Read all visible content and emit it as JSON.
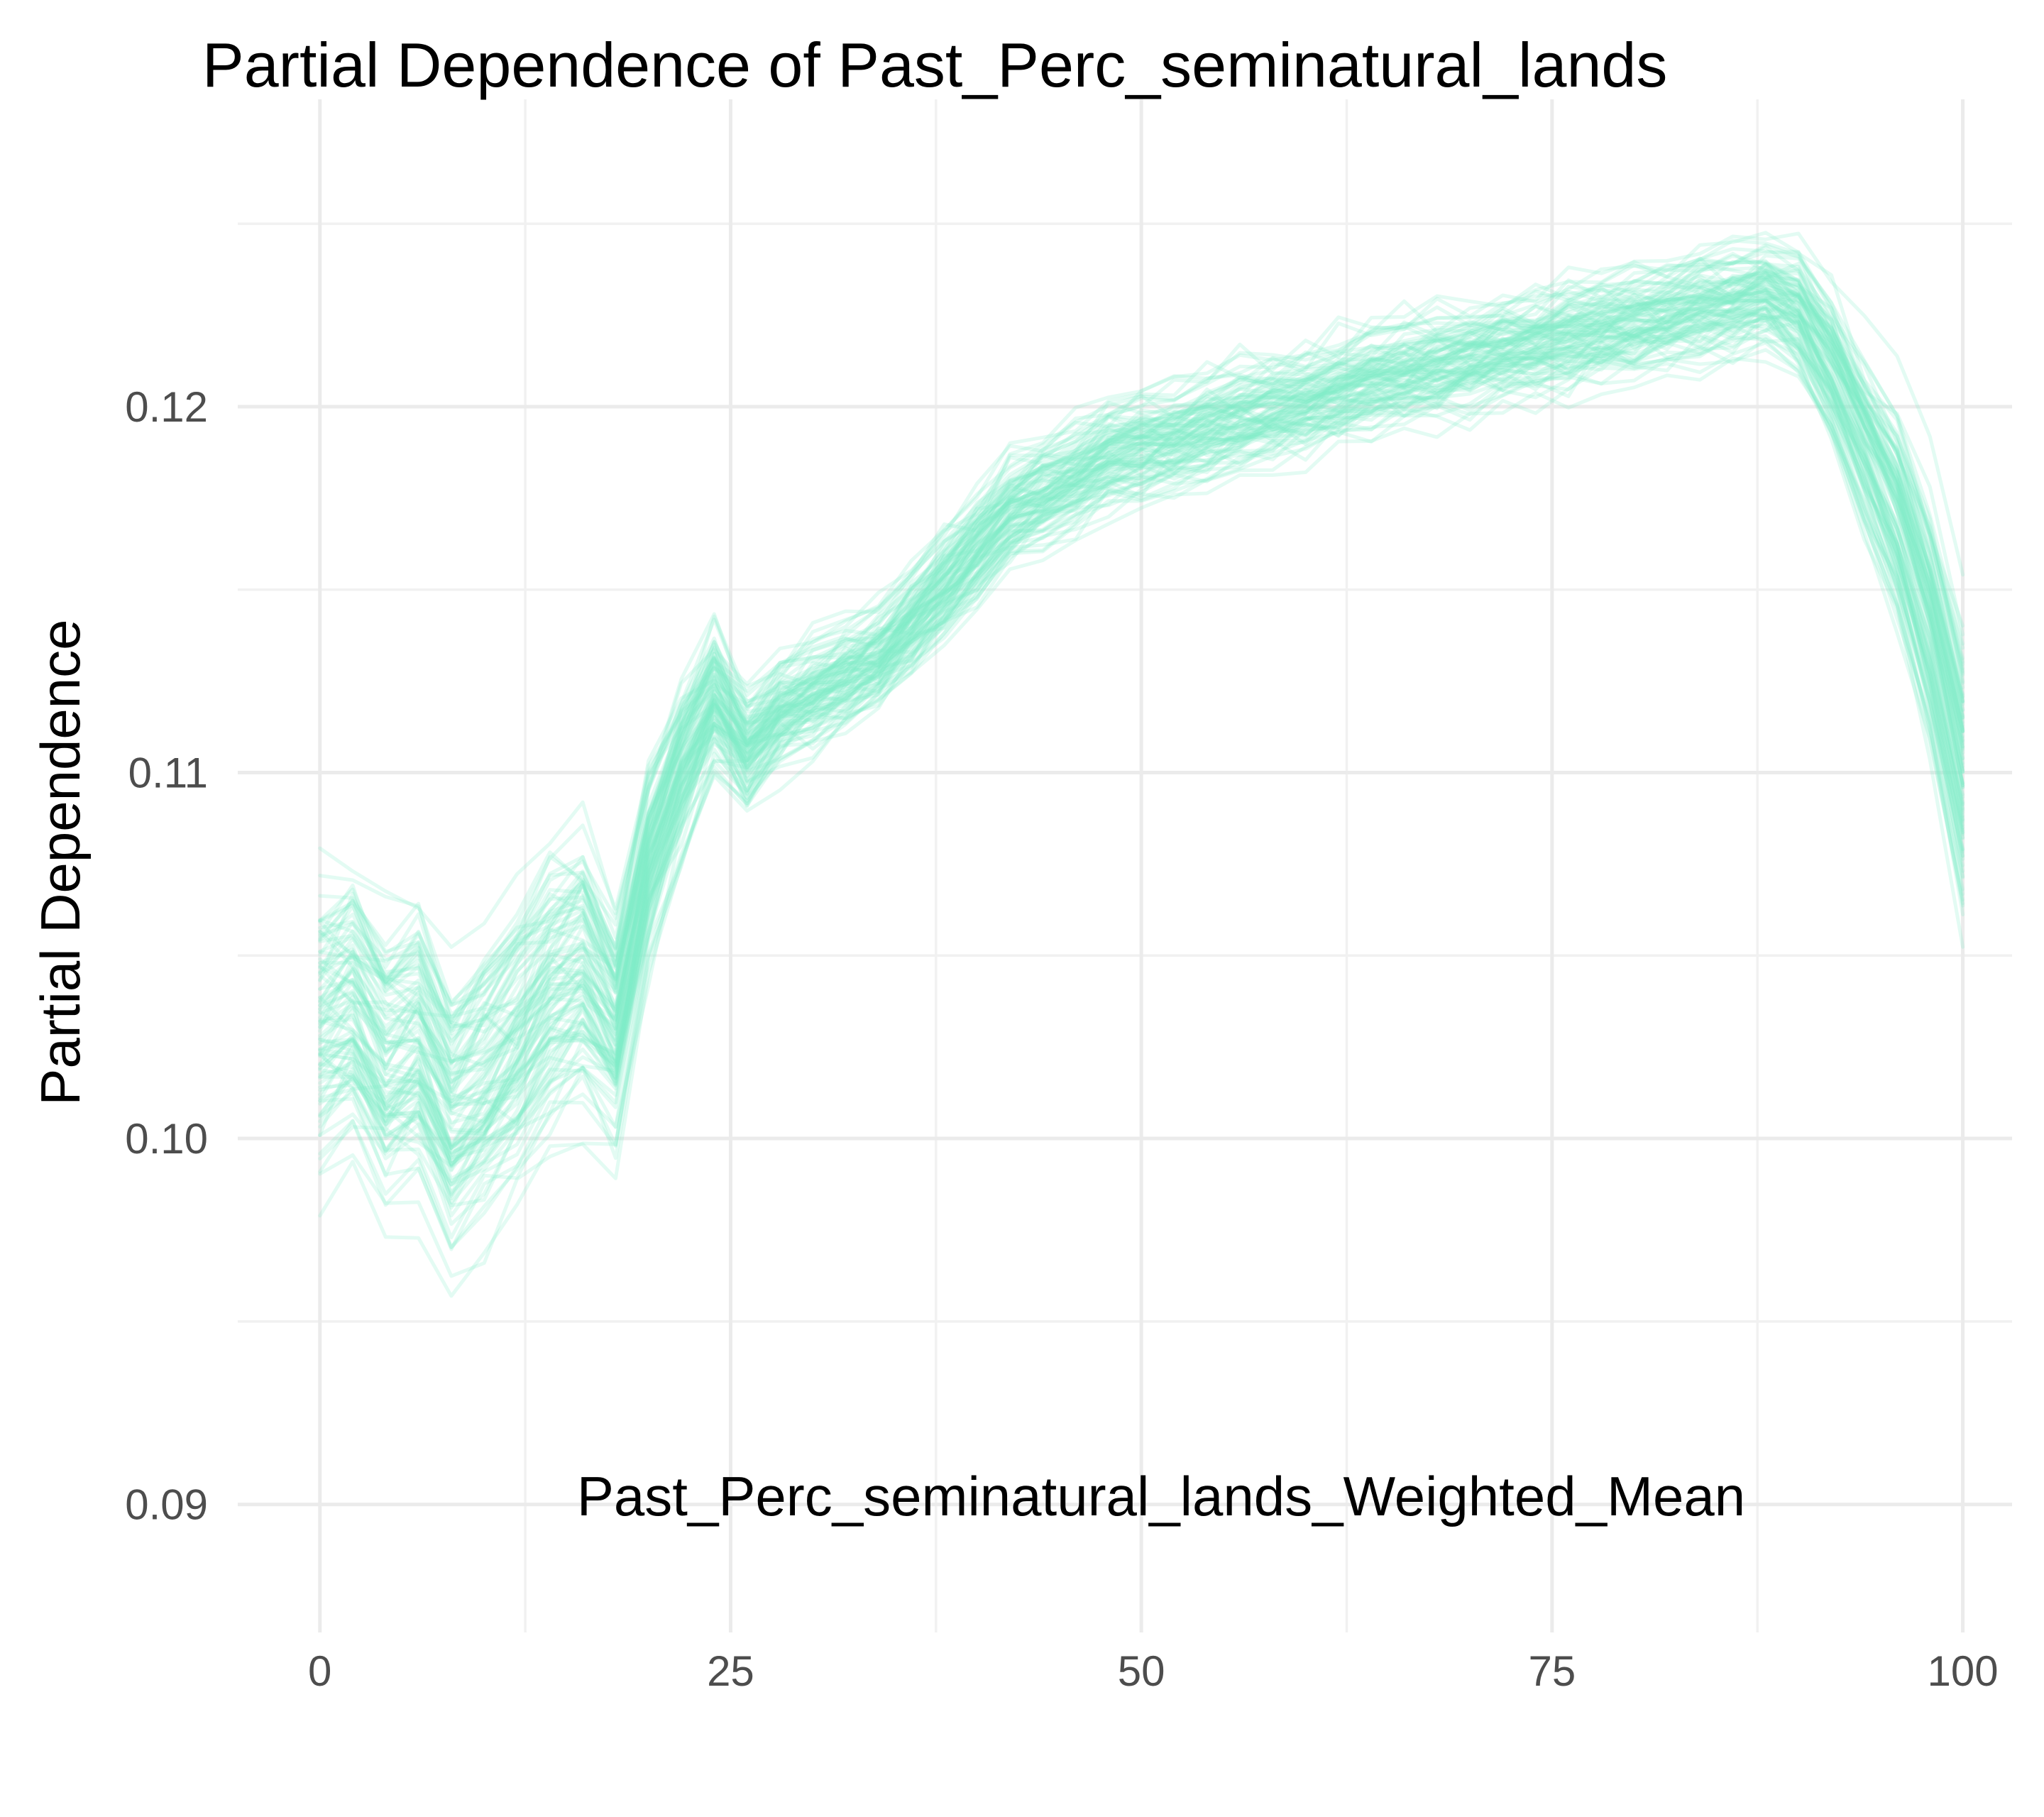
{
  "chart_data": {
    "type": "line",
    "title": "Partial Dependence of Past_Perc_seminatural_lands",
    "xlabel": "Past_Perc_seminatural_lands_Weighted_Mean",
    "ylabel": "Partial Dependence",
    "xlim": [
      -5,
      103
    ],
    "ylim": [
      0.0865,
      0.1284
    ],
    "x_ticks": [
      0,
      25,
      50,
      75,
      100
    ],
    "x_tick_labels": [
      "0",
      "25",
      "50",
      "75",
      "100"
    ],
    "y_ticks": [
      0.09,
      0.1,
      0.11,
      0.12
    ],
    "y_tick_labels": [
      "0.09",
      "0.10",
      "0.11",
      "0.12"
    ],
    "grid": true,
    "legend": "none",
    "line_color": "#7fecc9",
    "line_opacity": 0.22,
    "description": "Individual conditional expectation curves (about 100 series), each a variation of the mean curve below.",
    "mean_curve": {
      "x": [
        0,
        2,
        4,
        6,
        8,
        10,
        12,
        14,
        16,
        18,
        20,
        22,
        24,
        26,
        28,
        30,
        32,
        34,
        36,
        38,
        40,
        42,
        44,
        46,
        48,
        50,
        52,
        54,
        56,
        58,
        60,
        62,
        64,
        66,
        68,
        70,
        72,
        74,
        76,
        78,
        80,
        82,
        84,
        86,
        88,
        90,
        92,
        94,
        96,
        98,
        100
      ],
      "y": [
        0.103,
        0.1035,
        0.102,
        0.1025,
        0.1005,
        0.1015,
        0.1025,
        0.104,
        0.1045,
        0.103,
        0.1075,
        0.11,
        0.112,
        0.1105,
        0.1115,
        0.112,
        0.1125,
        0.113,
        0.114,
        0.115,
        0.116,
        0.117,
        0.1175,
        0.118,
        0.1185,
        0.1188,
        0.119,
        0.1193,
        0.1196,
        0.1198,
        0.12,
        0.1203,
        0.1206,
        0.1208,
        0.121,
        0.1212,
        0.1214,
        0.1216,
        0.1218,
        0.122,
        0.1222,
        0.1224,
        0.1226,
        0.1228,
        0.123,
        0.1225,
        0.121,
        0.119,
        0.117,
        0.114,
        0.11
      ]
    },
    "series_count": 100,
    "spread": {
      "left_region": 0.004,
      "right_region": 0.0015,
      "right_end": 0.003
    }
  }
}
